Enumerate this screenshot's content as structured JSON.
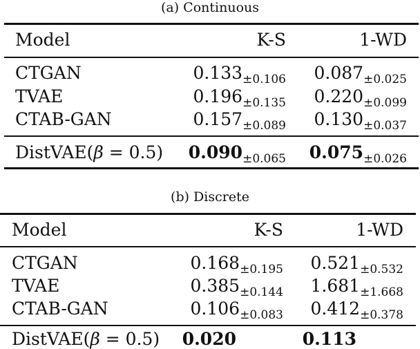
{
  "tables": [
    {
      "caption": "(a)  Continuous",
      "headers": [
        "Model",
        "K-S",
        "1-WD"
      ],
      "rows": [
        {
          "model": "CTGAN",
          "ks": "0.133",
          "ks_sd": "±0.106",
          "wd": "0.087",
          "wd_sd": "±0.025"
        },
        {
          "model": "TVAE",
          "ks": "0.196",
          "ks_sd": "±0.135",
          "wd": "0.220",
          "wd_sd": "±0.099"
        },
        {
          "model": "CTAB-GAN",
          "ks": "0.157",
          "ks_sd": "±0.089",
          "wd": "0.130",
          "wd_sd": "±0.037"
        }
      ],
      "final": {
        "model_prefix": "DistVAE(",
        "beta": "β",
        "model_suffix": " = 0.5)",
        "ks": "0.090",
        "ks_sd": "±0.065",
        "wd": "0.075",
        "wd_sd": "±0.026"
      }
    },
    {
      "caption": "(b)  Discrete",
      "headers": [
        "Model",
        "K-S",
        "1-WD"
      ],
      "rows": [
        {
          "model": "CTGAN",
          "ks": "0.168",
          "ks_sd": "±0.195",
          "wd": "0.521",
          "wd_sd": "±0.532"
        },
        {
          "model": "TVAE",
          "ks": "0.385",
          "ks_sd": "±0.144",
          "wd": "1.681",
          "wd_sd": "±1.668"
        },
        {
          "model": "CTAB-GAN",
          "ks": "0.106",
          "ks_sd": "±0.083",
          "wd": "0.412",
          "wd_sd": "±0.378"
        }
      ],
      "final": {
        "model_prefix": "DistVAE(",
        "beta": "β",
        "model_suffix": " = 0.5)",
        "ks": "0.020",
        "ks_sd": "",
        "wd": "0.113",
        "wd_sd": ""
      }
    }
  ]
}
